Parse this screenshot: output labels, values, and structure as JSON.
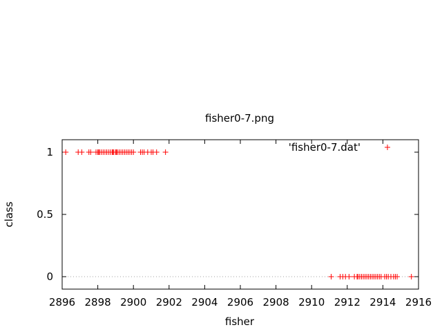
{
  "chart_data": {
    "type": "scatter",
    "title": "fisher0-7.png",
    "xlabel": "fisher",
    "ylabel": "class",
    "xlim": [
      2896,
      2916
    ],
    "ylim": [
      -0.1,
      1.1
    ],
    "xticks": [
      "2896",
      "2898",
      "2900",
      "2902",
      "2904",
      "2906",
      "2908",
      "2910",
      "2912",
      "2914",
      "2916"
    ],
    "yticks": [
      "0",
      "0.5",
      "1"
    ],
    "zero_line": true,
    "legend_position": "top-right",
    "series": [
      {
        "name": "'fisher0-7.dat'",
        "color": "#ff0000",
        "marker": "plus",
        "points": [
          [
            2896.2,
            1
          ],
          [
            2896.9,
            1
          ],
          [
            2897.1,
            1
          ],
          [
            2897.5,
            1
          ],
          [
            2897.6,
            1
          ],
          [
            2897.9,
            1
          ],
          [
            2898.0,
            1
          ],
          [
            2898.05,
            1
          ],
          [
            2898.1,
            1
          ],
          [
            2898.2,
            1
          ],
          [
            2898.3,
            1
          ],
          [
            2898.4,
            1
          ],
          [
            2898.5,
            1
          ],
          [
            2898.6,
            1
          ],
          [
            2898.7,
            1
          ],
          [
            2898.8,
            1
          ],
          [
            2898.85,
            1
          ],
          [
            2898.9,
            1
          ],
          [
            2899.0,
            1
          ],
          [
            2899.05,
            1
          ],
          [
            2899.1,
            1
          ],
          [
            2899.2,
            1
          ],
          [
            2899.3,
            1
          ],
          [
            2899.4,
            1
          ],
          [
            2899.5,
            1
          ],
          [
            2899.6,
            1
          ],
          [
            2899.7,
            1
          ],
          [
            2899.8,
            1
          ],
          [
            2899.9,
            1
          ],
          [
            2900.0,
            1
          ],
          [
            2900.4,
            1
          ],
          [
            2900.5,
            1
          ],
          [
            2900.6,
            1
          ],
          [
            2900.8,
            1
          ],
          [
            2901.0,
            1
          ],
          [
            2901.1,
            1
          ],
          [
            2901.3,
            1
          ],
          [
            2901.8,
            1
          ],
          [
            2911.1,
            0
          ],
          [
            2911.6,
            0
          ],
          [
            2911.75,
            0
          ],
          [
            2911.9,
            0
          ],
          [
            2912.1,
            0
          ],
          [
            2912.4,
            0
          ],
          [
            2912.55,
            0
          ],
          [
            2912.6,
            0
          ],
          [
            2912.7,
            0
          ],
          [
            2912.8,
            0
          ],
          [
            2912.9,
            0
          ],
          [
            2913.0,
            0
          ],
          [
            2913.1,
            0
          ],
          [
            2913.2,
            0
          ],
          [
            2913.3,
            0
          ],
          [
            2913.4,
            0
          ],
          [
            2913.5,
            0
          ],
          [
            2913.6,
            0
          ],
          [
            2913.7,
            0
          ],
          [
            2913.8,
            0
          ],
          [
            2913.9,
            0
          ],
          [
            2914.1,
            0
          ],
          [
            2914.2,
            0
          ],
          [
            2914.3,
            0
          ],
          [
            2914.45,
            0
          ],
          [
            2914.6,
            0
          ],
          [
            2914.7,
            0
          ],
          [
            2914.8,
            0
          ],
          [
            2915.6,
            0
          ]
        ]
      }
    ]
  }
}
